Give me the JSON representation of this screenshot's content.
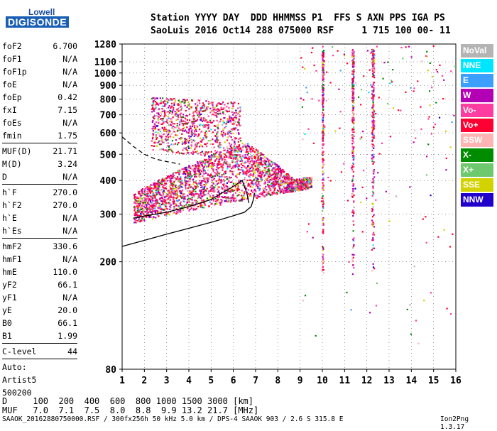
{
  "logo": {
    "line1": "Lowell",
    "line2": "DIGISONDE"
  },
  "header": {
    "line1": "Station YYYY DAY  DDD HHMMSS P1  FFS S AXN PPS IGA PS",
    "line2": "SaoLuis 2016 Oct14 288 075000 RSF     1 715 100 00- 11"
  },
  "params_a": [
    {
      "key": "foF2",
      "value": "6.700"
    },
    {
      "key": "foF1",
      "value": "N/A"
    },
    {
      "key": "foF1p",
      "value": "N/A"
    },
    {
      "key": "foE",
      "value": "N/A"
    },
    {
      "key": "foEp",
      "value": "0.42"
    },
    {
      "key": "fxI",
      "value": "7.15"
    },
    {
      "key": "foEs",
      "value": "N/A"
    },
    {
      "key": "fmin",
      "value": "1.75"
    }
  ],
  "params_b": [
    {
      "key": "MUF(D)",
      "value": "21.71"
    },
    {
      "key": "M(D)",
      "value": "3.24"
    },
    {
      "key": "D",
      "value": "N/A"
    }
  ],
  "params_c": [
    {
      "key": "h`F",
      "value": "270.0"
    },
    {
      "key": "h`F2",
      "value": "270.0"
    },
    {
      "key": "h`E",
      "value": "N/A"
    },
    {
      "key": "h`Es",
      "value": "N/A"
    }
  ],
  "params_d": [
    {
      "key": "hmF2",
      "value": "330.6"
    },
    {
      "key": "hmF1",
      "value": "N/A"
    },
    {
      "key": "hmE",
      "value": "110.0"
    },
    {
      "key": "yF2",
      "value": "66.1"
    },
    {
      "key": "yF1",
      "value": "N/A"
    },
    {
      "key": "yE",
      "value": "20.0"
    },
    {
      "key": "B0",
      "value": "66.1"
    },
    {
      "key": "B1",
      "value": "1.99"
    }
  ],
  "params_e": [
    {
      "key": "C-level",
      "value": "44"
    }
  ],
  "auto": {
    "line1": "Auto:",
    "line2": "Artist5",
    "line3": "500200"
  },
  "legend": [
    {
      "label": "NoVal",
      "color": "#b4b4b4"
    },
    {
      "label": "NNE",
      "color": "#00e6ff"
    },
    {
      "label": "E",
      "color": "#3c9fff"
    },
    {
      "label": "W",
      "color": "#b400b4"
    },
    {
      "label": "Vo-",
      "color": "#ff3c9f"
    },
    {
      "label": "Vo+",
      "color": "#ff0032"
    },
    {
      "label": "SSW",
      "color": "#ffb4b4"
    },
    {
      "label": "X-",
      "color": "#008c00"
    },
    {
      "label": "X+",
      "color": "#6ec86e"
    },
    {
      "label": "SSE",
      "color": "#d2d200"
    },
    {
      "label": "NNW",
      "color": "#2200cc"
    }
  ],
  "footer": {
    "row_d": "D     100  200  400  600  800 1000 1500 3000 [km]",
    "row_muf": "MUF   7.0  7.1  7.5  8.0  8.8  9.9 13.2 21.7 [MHz]",
    "info": "SAAOK_20162880750000.RSF / 300fx256h 50 kHz 5.0 km / DPS-4 SAAOK 903 / 2.6 S 315.8 E",
    "version": "Ion2Png 1.3.17"
  },
  "chart_data": {
    "type": "scatter",
    "xlim": [
      1,
      16
    ],
    "ylim": [
      80,
      1280
    ],
    "y_scale": "log",
    "x_ticks": [
      "1",
      "2",
      "3",
      "4",
      "5",
      "6",
      "7",
      "8",
      "9",
      "10",
      "11",
      "12",
      "13",
      "14",
      "15",
      "16"
    ],
    "y_ticks": [
      "80",
      "200",
      "300",
      "400",
      "500",
      "600",
      "700",
      "800",
      "900",
      "1000",
      "1100",
      "1280"
    ],
    "traces": [
      {
        "name": "profile",
        "points": [
          [
            1.0,
            228
          ],
          [
            2,
            240
          ],
          [
            3,
            253
          ],
          [
            4,
            266
          ],
          [
            5,
            280
          ],
          [
            6,
            296
          ],
          [
            6.5,
            305
          ],
          [
            6.8,
            320
          ],
          [
            6.9,
            340
          ],
          [
            6.95,
            360
          ]
        ]
      },
      {
        "name": "trace",
        "points": [
          [
            1.5,
            290
          ],
          [
            2,
            295
          ],
          [
            3,
            305
          ],
          [
            4,
            320
          ],
          [
            5,
            340
          ],
          [
            5.5,
            360
          ],
          [
            6,
            380
          ],
          [
            6.4,
            400
          ],
          [
            6.6,
            360
          ],
          [
            6.7,
            330
          ]
        ]
      },
      {
        "name": "dashed",
        "points": [
          [
            1,
            580
          ],
          [
            1.5,
            535
          ],
          [
            2,
            500
          ],
          [
            2.5,
            480
          ],
          [
            3,
            470
          ],
          [
            3.6,
            460
          ]
        ]
      }
    ]
  }
}
